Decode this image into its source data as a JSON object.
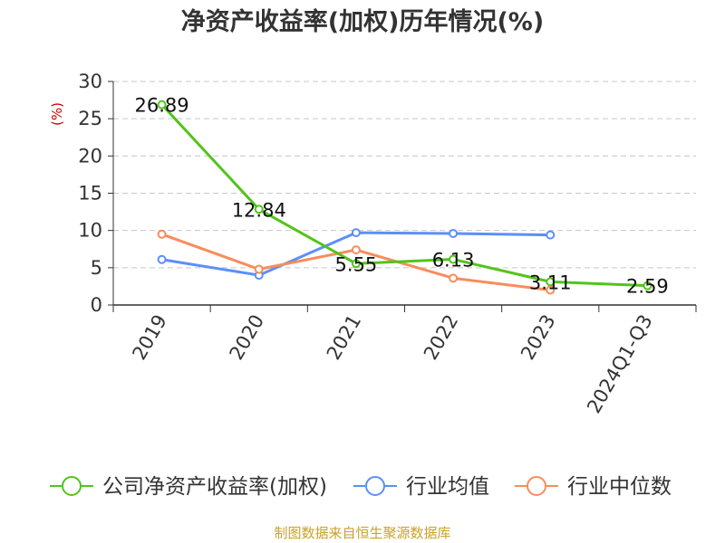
{
  "chart_data": {
    "type": "line",
    "title": "净资产收益率(加权)历年情况(%)",
    "ylabel": "(%)",
    "xlabel": "",
    "categories": [
      "2019",
      "2020",
      "2021",
      "2022",
      "2023",
      "2024Q1-Q3"
    ],
    "ylim": [
      0,
      30
    ],
    "yticks": [
      0,
      5,
      10,
      15,
      20,
      25,
      30
    ],
    "grid": "horizontal-dashed",
    "legend_position": "bottom",
    "series": [
      {
        "name": "公司净资产收益率(加权)",
        "color": "#52c41a",
        "values": [
          26.89,
          12.84,
          5.55,
          6.13,
          3.11,
          2.59
        ],
        "data_labels": [
          "26.89",
          "12.84",
          "5.55",
          "6.13",
          "3.11",
          "2.59"
        ]
      },
      {
        "name": "行业均值",
        "color": "#5b8ff9",
        "values": [
          6.1,
          4.0,
          9.7,
          9.6,
          9.4,
          null
        ]
      },
      {
        "name": "行业中位数",
        "color": "#f98c5b",
        "values": [
          9.5,
          4.8,
          7.4,
          3.6,
          2.0,
          null
        ]
      }
    ]
  },
  "source": "制图数据来自恒生聚源数据库"
}
